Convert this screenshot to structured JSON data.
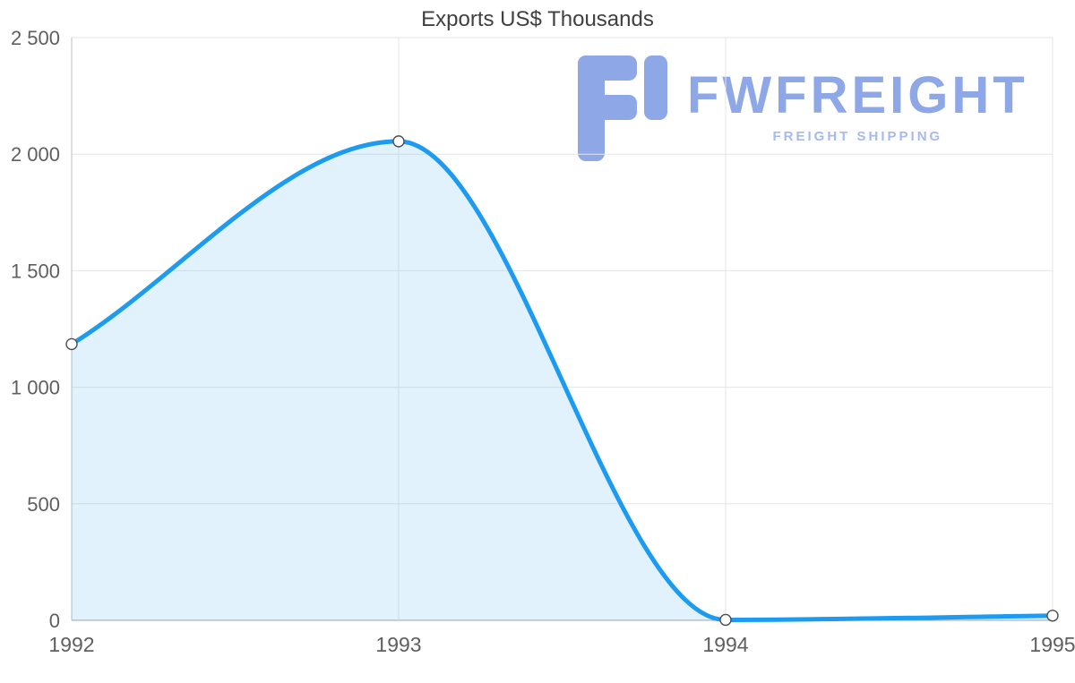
{
  "title": "Exports US$ Thousands",
  "watermark": {
    "brand": "FWFREIGHT",
    "tagline": "FREIGHT SHIPPING",
    "brand_color": "#8ea7e7",
    "tagline_color": "#a7b9ed"
  },
  "chart_data": {
    "type": "area",
    "title": "Exports US$ Thousands",
    "categories": [
      "1992",
      "1993",
      "1994",
      "1995"
    ],
    "series": [
      {
        "name": "Exports US$ Thousands",
        "values": [
          1185,
          2055,
          2,
          20
        ]
      }
    ],
    "xlabel": "",
    "ylabel": "",
    "ylim": [
      0,
      2500
    ],
    "ytick_interval": 500,
    "ytick_labels": [
      "0",
      "500",
      "1 000",
      "1 500",
      "2 000",
      "2 500"
    ],
    "grid": true,
    "legend": false,
    "line_color": "#1d9bf0",
    "area_color": "rgba(30,152,241,0.13)",
    "grid_color": "#e6e6e6",
    "axis_color": "#a6a6a6",
    "tick_label_color": "#5f5f5f",
    "marker_style": "white circle with dark outline"
  }
}
